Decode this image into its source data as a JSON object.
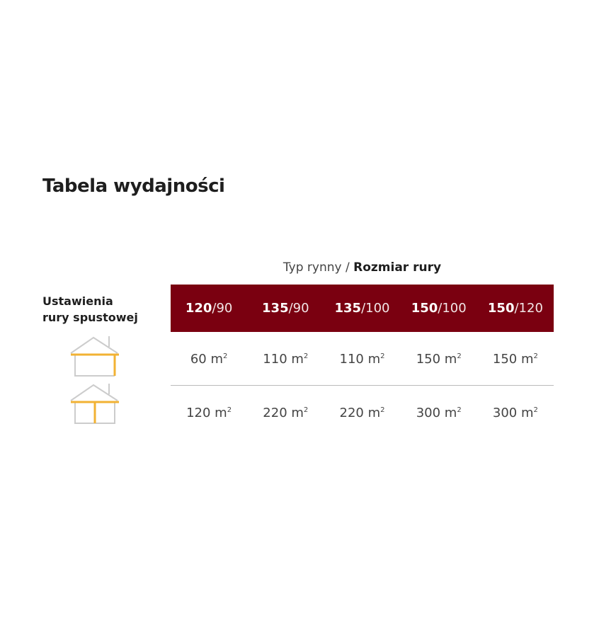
{
  "title": "Tabela wydajności",
  "caption": {
    "normal": "Typ rynny /",
    "bold": "Rozmiar rury"
  },
  "row_label": [
    "Ustawienia",
    "rury spustowej"
  ],
  "colors": {
    "header": "#7a0010",
    "accent": "#f2b233"
  },
  "columns": [
    {
      "bold": "120",
      "rest": "/90"
    },
    {
      "bold": "135",
      "rest": "/90"
    },
    {
      "bold": "135",
      "rest": "/100"
    },
    {
      "bold": "150",
      "rest": "/100"
    },
    {
      "bold": "150",
      "rest": "/120"
    }
  ],
  "rows": [
    {
      "icon": "house-corner-downpipe-icon",
      "cells": [
        "60 m",
        "110 m",
        "110 m",
        "150 m",
        "150 m"
      ]
    },
    {
      "icon": "house-center-downpipe-icon",
      "cells": [
        "120 m",
        "220 m",
        "220 m",
        "300 m",
        "300 m"
      ]
    }
  ],
  "unit_sup": "2"
}
